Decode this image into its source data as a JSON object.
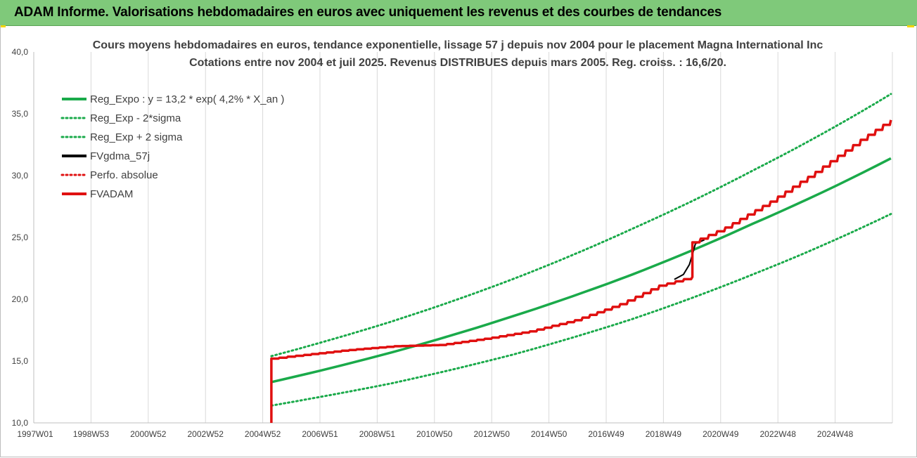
{
  "header": {
    "title": "ADAM Informe. Valorisations hebdomadaires en euros avec uniquement les revenus et des courbes de tendances"
  },
  "colors": {
    "header_bg": "#7fc97a",
    "green": "#1aaa4a",
    "red": "#e01010",
    "black": "#000000",
    "grid": "#d9d9d9"
  },
  "chart_data": {
    "type": "line",
    "title": "Cours moyens hebdomadaires en euros, tendance exponentielle, lissage 57 j depuis nov 2004 pour le placement Magna International Inc",
    "subtitle": "Cotations entre nov 2004 et juil 2025. Revenus DISTRIBUES depuis mars 2005. Reg. croiss. : 16,6/20.",
    "xlabel": "",
    "ylabel": "",
    "x_tick_labels": [
      "1997W01",
      "1998W53",
      "2000W52",
      "2002W52",
      "2004W52",
      "2006W51",
      "2008W51",
      "2010W50",
      "2012W50",
      "2014W50",
      "2016W49",
      "2018W49",
      "2020W49",
      "2022W48",
      "2024W48"
    ],
    "y_tick_labels": [
      "40,0",
      "35,0",
      "30,0",
      "25,0",
      "20,0",
      "15,0",
      "10,0"
    ],
    "ylim": [
      10,
      40
    ],
    "xlim": [
      1997.0,
      2025.55
    ],
    "grid": "vertical",
    "legend_position": "top-left",
    "legend": [
      "Reg_Expo : y = 13,2 * exp( 4,2% *  X_an )",
      "Reg_Exp - 2*sigma",
      "Reg_Exp + 2 sigma",
      "FVgdma_57j",
      "Perfo. absolue",
      "FVADAM"
    ],
    "series": [
      {
        "name": "Reg_Expo : y = 13,2 * exp( 4,2% *  X_an )",
        "style": "solid",
        "color": "#1aaa4a",
        "points": [
          [
            2004.9,
            13.3
          ],
          [
            2008.9,
            15.7
          ],
          [
            2012.9,
            18.6
          ],
          [
            2016.9,
            22.0
          ],
          [
            2020.9,
            26.1
          ],
          [
            2025.5,
            31.4
          ]
        ]
      },
      {
        "name": "Reg_Exp - 2*sigma",
        "style": "dotted",
        "color": "#1aaa4a",
        "points": [
          [
            2004.9,
            11.4
          ],
          [
            2008.9,
            13.2
          ],
          [
            2012.9,
            15.5
          ],
          [
            2016.9,
            18.4
          ],
          [
            2020.9,
            22.0
          ],
          [
            2025.5,
            26.9
          ]
        ]
      },
      {
        "name": "Reg_Exp + 2 sigma",
        "style": "dotted",
        "color": "#1aaa4a",
        "points": [
          [
            2004.9,
            15.4
          ],
          [
            2008.9,
            18.2
          ],
          [
            2012.9,
            21.6
          ],
          [
            2016.9,
            25.7
          ],
          [
            2020.9,
            30.4
          ],
          [
            2025.5,
            36.6
          ]
        ]
      },
      {
        "name": "FVgdma_57j",
        "style": "solid",
        "color": "#000000",
        "points": [
          [
            2018.3,
            21.6
          ],
          [
            2018.6,
            22.0
          ],
          [
            2018.8,
            22.8
          ],
          [
            2018.9,
            23.6
          ],
          [
            2019.0,
            24.5
          ],
          [
            2019.3,
            24.8
          ]
        ]
      },
      {
        "name": "Perfo. absolue",
        "style": "dotted",
        "color": "#e01010",
        "points": []
      },
      {
        "name": "FVADAM",
        "style": "solid",
        "color": "#e01010",
        "points": [
          [
            2004.9,
            10.0
          ],
          [
            2004.9,
            15.2
          ],
          [
            2006.0,
            15.5
          ],
          [
            2007.5,
            15.9
          ],
          [
            2009.0,
            16.2
          ],
          [
            2010.5,
            16.3
          ],
          [
            2012.0,
            16.8
          ],
          [
            2013.5,
            17.4
          ],
          [
            2015.0,
            18.3
          ],
          [
            2016.5,
            19.6
          ],
          [
            2017.8,
            21.1
          ],
          [
            2018.9,
            21.8
          ],
          [
            2018.9,
            24.6
          ],
          [
            2020.0,
            25.8
          ],
          [
            2021.5,
            27.9
          ],
          [
            2023.0,
            30.3
          ],
          [
            2024.5,
            32.9
          ],
          [
            2025.5,
            34.5
          ]
        ]
      }
    ]
  }
}
